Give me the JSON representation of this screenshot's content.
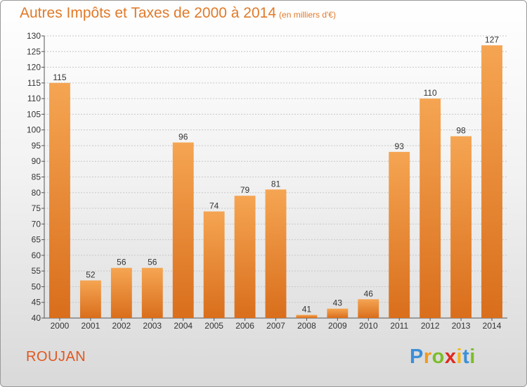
{
  "title": "Autres Impôts et Taxes de 2000 à 2014",
  "title_unit": "(en milliers d'€)",
  "commune": "ROUJAN",
  "logo": {
    "text": [
      "P",
      "r",
      "o",
      "x",
      "i",
      "t",
      "i"
    ]
  },
  "colors": {
    "bar_top": "#f5a552",
    "bar_bottom": "#d96e1c",
    "title": "#e07a2a",
    "commune": "#e0571f"
  },
  "chart_data": {
    "type": "bar",
    "title": "Autres Impôts et Taxes de 2000 à 2014",
    "subtitle": "(en milliers d'€)",
    "categories": [
      "2000",
      "2001",
      "2002",
      "2003",
      "2004",
      "2005",
      "2006",
      "2007",
      "2008",
      "2009",
      "2010",
      "2011",
      "2012",
      "2013",
      "2014"
    ],
    "values": [
      115,
      52,
      56,
      56,
      96,
      74,
      79,
      81,
      41,
      43,
      46,
      93,
      110,
      98,
      127
    ],
    "ylim": [
      40,
      130
    ],
    "yticks": [
      40,
      45,
      50,
      55,
      60,
      65,
      70,
      75,
      80,
      85,
      90,
      95,
      100,
      105,
      110,
      115,
      120,
      125,
      130
    ],
    "grid": true,
    "xlabel": "",
    "ylabel": ""
  }
}
